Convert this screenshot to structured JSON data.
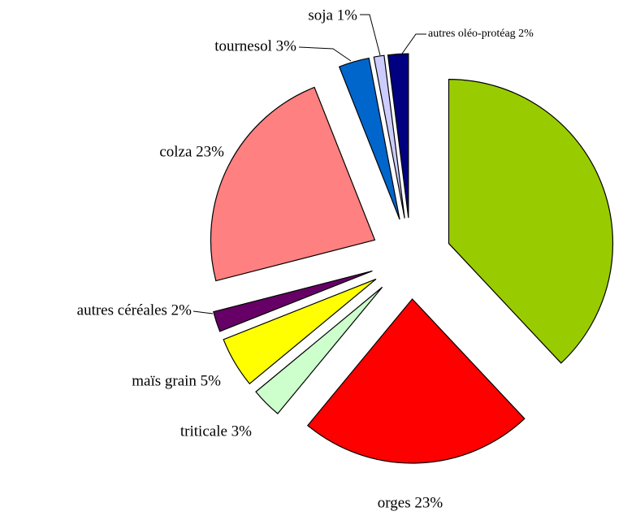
{
  "chart_data": {
    "type": "pie",
    "categories": [
      null,
      "orges 23%",
      "triticale 3%",
      "maïs grain 5%",
      "autres céréales 2%",
      "colza 23%",
      "tournesol 3%",
      "soja 1%",
      "autres oléo-protéag 2%"
    ],
    "values": [
      38,
      23,
      3,
      5,
      2,
      23,
      3,
      1,
      2
    ],
    "colors": [
      "#99cc00",
      "#ff0000",
      "#ccffcc",
      "#ffff00",
      "#660066",
      "#ff8080",
      "#0066cc",
      "#ccccff",
      "#000080"
    ]
  }
}
